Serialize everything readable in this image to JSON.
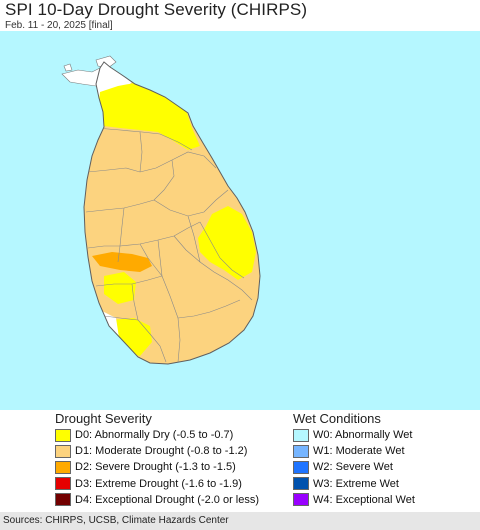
{
  "header": {
    "title": "SPI 10-Day Drought Severity (CHIRPS)",
    "subtitle": "Feb. 11 - 20, 2025 [final]"
  },
  "colors": {
    "ocean": "#b5f7ff",
    "d0": "#ffff00",
    "d1": "#fcd37f",
    "d2": "#ffaa00",
    "d3": "#e60000",
    "d4": "#730000",
    "w0": "#b5f7ff",
    "w1": "#76b5ff",
    "w2": "#1f74ff",
    "w3": "#0052ae",
    "w4": "#9900ff",
    "no_drought": "#ffffff",
    "boundary": "#7a7a7a"
  },
  "legend": {
    "drought": {
      "heading": "Drought Severity",
      "items": [
        {
          "label": "D0: Abnormally Dry (-0.5 to -0.7)",
          "color": "#ffff00"
        },
        {
          "label": "D1: Moderate Drought (-0.8 to -1.2)",
          "color": "#fcd37f"
        },
        {
          "label": "D2: Severe Drought (-1.3 to -1.5)",
          "color": "#ffaa00"
        },
        {
          "label": "D3: Extreme Drought (-1.6 to -1.9)",
          "color": "#e60000"
        },
        {
          "label": "D4: Exceptional Drought (-2.0 or less)",
          "color": "#730000"
        }
      ]
    },
    "wet": {
      "heading": "Wet Conditions",
      "items": [
        {
          "label": "W0: Abnormally Wet",
          "color": "#b5f7ff"
        },
        {
          "label": "W1: Moderate Wet",
          "color": "#76b5ff"
        },
        {
          "label": "W2: Severe Wet",
          "color": "#1f74ff"
        },
        {
          "label": "W3: Extreme Wet",
          "color": "#0052ae"
        },
        {
          "label": "W4: Exceptional Wet",
          "color": "#9900ff"
        }
      ]
    }
  },
  "footer": {
    "source": "Sources: CHIRPS, UCSB, Climate Hazards Center"
  }
}
